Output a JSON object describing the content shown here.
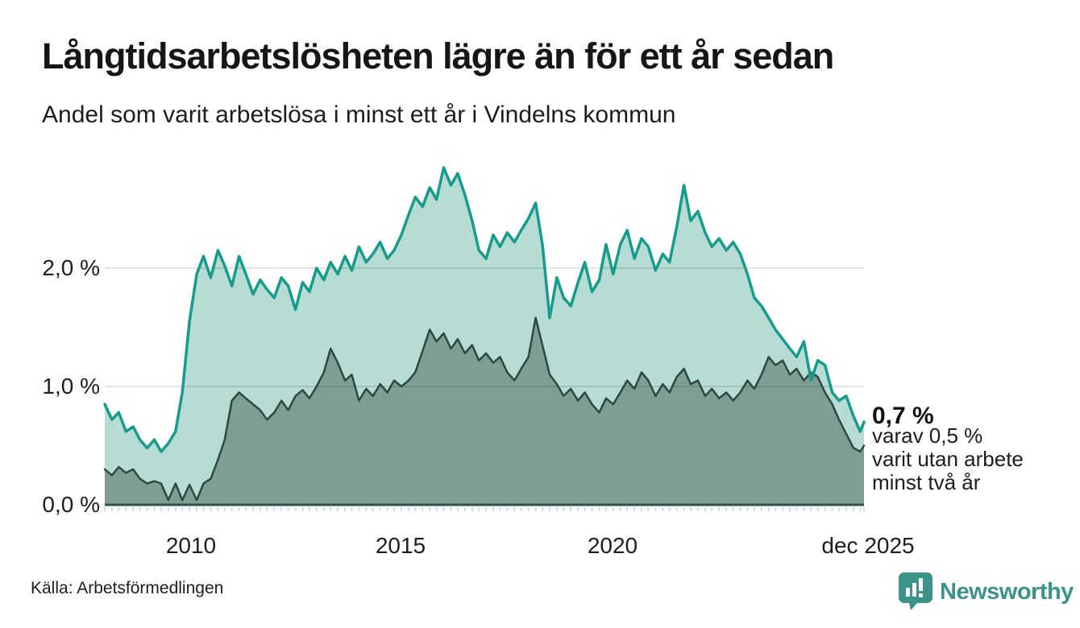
{
  "header": {
    "title": "Långtidsarbetslösheten lägre än för ett år sedan",
    "subtitle": "Andel som varit arbetslösa i minst ett år i Vindelns kommun"
  },
  "chart_data": {
    "type": "area",
    "title": "Långtidsarbetslösheten lägre än för ett år sedan",
    "subtitle": "Andel som varit arbetslösa i minst ett år i Vindelns kommun",
    "unit": "%",
    "ylim": [
      0,
      2.9
    ],
    "grid": true,
    "legend_position": "none",
    "y_ticks": [
      {
        "label": "0,0 %",
        "value": 0.0
      },
      {
        "label": "1,0 %",
        "value": 1.0
      },
      {
        "label": "2,0 %",
        "value": 2.0
      }
    ],
    "x_ticks": [
      {
        "label": "2010",
        "year": 2010
      },
      {
        "label": "2015",
        "year": 2015
      },
      {
        "label": "2020",
        "year": 2020
      },
      {
        "label": "dec 2025",
        "year": 2025.92
      }
    ],
    "x": [
      2008,
      2008.17,
      2008.33,
      2008.5,
      2008.67,
      2008.83,
      2009,
      2009.17,
      2009.33,
      2009.5,
      2009.67,
      2009.83,
      2010,
      2010.17,
      2010.33,
      2010.5,
      2010.67,
      2010.83,
      2011,
      2011.17,
      2011.33,
      2011.5,
      2011.67,
      2011.83,
      2012,
      2012.17,
      2012.33,
      2012.5,
      2012.67,
      2012.83,
      2013,
      2013.17,
      2013.33,
      2013.5,
      2013.67,
      2013.83,
      2014,
      2014.17,
      2014.33,
      2014.5,
      2014.67,
      2014.83,
      2015,
      2015.17,
      2015.33,
      2015.5,
      2015.67,
      2015.83,
      2016,
      2016.17,
      2016.33,
      2016.5,
      2016.67,
      2016.83,
      2017,
      2017.17,
      2017.33,
      2017.5,
      2017.67,
      2017.83,
      2018,
      2018.17,
      2018.33,
      2018.5,
      2018.67,
      2018.83,
      2019,
      2019.17,
      2019.33,
      2019.5,
      2019.67,
      2019.83,
      2020,
      2020.17,
      2020.33,
      2020.5,
      2020.67,
      2020.83,
      2021,
      2021.17,
      2021.33,
      2021.5,
      2021.67,
      2021.83,
      2022,
      2022.17,
      2022.33,
      2022.5,
      2022.67,
      2022.83,
      2023,
      2023.17,
      2023.33,
      2023.5,
      2023.67,
      2023.83,
      2024,
      2024.17,
      2024.33,
      2024.5,
      2024.67,
      2024.83,
      2025,
      2025.17,
      2025.33,
      2025.5,
      2025.67,
      2025.83,
      2025.92
    ],
    "series": [
      {
        "name": "Arbetslösa minst ett år",
        "line_color": "#169b8d",
        "fill_color": "#b6dcd4",
        "line_width": 3.5,
        "last_value_label": "0,7 %",
        "values": [
          0.85,
          0.72,
          0.78,
          0.62,
          0.66,
          0.55,
          0.48,
          0.55,
          0.45,
          0.52,
          0.62,
          0.95,
          1.55,
          1.95,
          2.1,
          1.92,
          2.15,
          2.02,
          1.85,
          2.1,
          1.95,
          1.78,
          1.9,
          1.82,
          1.75,
          1.92,
          1.85,
          1.65,
          1.88,
          1.8,
          2.0,
          1.9,
          2.05,
          1.95,
          2.1,
          1.98,
          2.18,
          2.05,
          2.12,
          2.22,
          2.08,
          2.15,
          2.28,
          2.45,
          2.6,
          2.52,
          2.68,
          2.58,
          2.85,
          2.7,
          2.8,
          2.62,
          2.4,
          2.15,
          2.08,
          2.28,
          2.18,
          2.3,
          2.22,
          2.32,
          2.42,
          2.55,
          2.2,
          1.58,
          1.92,
          1.75,
          1.68,
          1.88,
          2.05,
          1.8,
          1.9,
          2.2,
          1.95,
          2.2,
          2.32,
          2.08,
          2.25,
          2.18,
          1.98,
          2.12,
          2.05,
          2.35,
          2.7,
          2.4,
          2.48,
          2.3,
          2.18,
          2.25,
          2.15,
          2.22,
          2.12,
          1.95,
          1.75,
          1.68,
          1.58,
          1.48,
          1.4,
          1.32,
          1.25,
          1.38,
          1.05,
          1.22,
          1.18,
          0.95,
          0.88,
          0.92,
          0.75,
          0.62,
          0.7
        ]
      },
      {
        "name": "varav utan arbete minst två år",
        "line_color": "#2d4742",
        "fill_color": "#7e9e94",
        "line_width": 2.5,
        "last_value_label": "0,5 %",
        "values": [
          0.3,
          0.25,
          0.32,
          0.27,
          0.3,
          0.22,
          0.18,
          0.2,
          0.18,
          0.04,
          0.18,
          0.04,
          0.17,
          0.04,
          0.18,
          0.22,
          0.38,
          0.55,
          0.88,
          0.95,
          0.9,
          0.85,
          0.8,
          0.72,
          0.78,
          0.88,
          0.8,
          0.92,
          0.97,
          0.9,
          1.0,
          1.12,
          1.32,
          1.2,
          1.05,
          1.1,
          0.88,
          0.98,
          0.92,
          1.02,
          0.95,
          1.05,
          1.0,
          1.05,
          1.12,
          1.3,
          1.48,
          1.38,
          1.45,
          1.32,
          1.4,
          1.28,
          1.35,
          1.22,
          1.28,
          1.2,
          1.25,
          1.12,
          1.05,
          1.15,
          1.25,
          1.58,
          1.35,
          1.1,
          1.02,
          0.92,
          0.98,
          0.88,
          0.95,
          0.85,
          0.78,
          0.9,
          0.85,
          0.95,
          1.05,
          0.98,
          1.12,
          1.05,
          0.92,
          1.02,
          0.95,
          1.08,
          1.15,
          1.02,
          1.05,
          0.92,
          0.98,
          0.9,
          0.95,
          0.88,
          0.95,
          1.05,
          0.98,
          1.1,
          1.25,
          1.18,
          1.22,
          1.1,
          1.15,
          1.05,
          1.12,
          1.08,
          0.95,
          0.85,
          0.72,
          0.6,
          0.48,
          0.45,
          0.5
        ]
      }
    ]
  },
  "annotation": {
    "value_label": "0,7 %",
    "line1": "varav 0,5 %",
    "line2": "varit utan arbete",
    "line3": "minst två år"
  },
  "footer": {
    "source": "Källa: Arbetsförmedlingen",
    "brand": "Newsworthy"
  },
  "colors": {
    "accent_teal": "#169b8d",
    "fill_light": "#b6dcd4",
    "fill_dark": "#7e9e94",
    "line_dark": "#2d4742",
    "axis_line": "#34504b",
    "gridline": "rgba(0,0,0,0.11)",
    "tick": "#d9d9d9",
    "brand_teal": "#3b938a",
    "text": "#161616"
  }
}
